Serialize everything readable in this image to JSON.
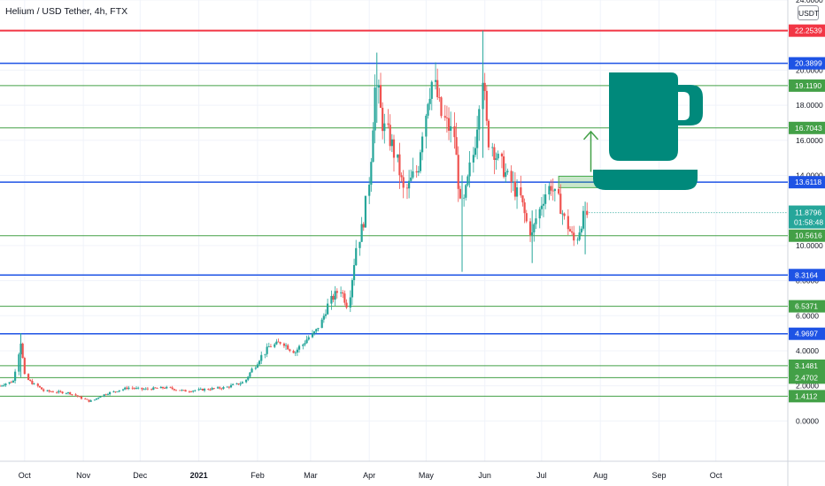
{
  "header": {
    "title": "Helium / USD Tether, 4h, FTX",
    "currency": "USDT"
  },
  "chart_data": {
    "type": "candlestick",
    "symbol": "Helium / USD Tether",
    "interval": "4h",
    "exchange": "FTX",
    "ylim": [
      -2.3,
      24.0
    ],
    "y_ticks": [
      "0.0000",
      "2.0000",
      "4.0000",
      "6.0000",
      "8.0000",
      "10.0000",
      "14.0000",
      "16.0000",
      "18.0000",
      "20.0000",
      "24.0000"
    ],
    "x_ticks": [
      "Oct",
      "Nov",
      "Dec",
      "2021",
      "Feb",
      "Mar",
      "Apr",
      "May",
      "Jun",
      "Jul",
      "Aug",
      "Sep",
      "Oct"
    ],
    "horizontal_levels": [
      {
        "value": 22.2539,
        "label": "22.2539",
        "color": "#f23645"
      },
      {
        "value": 20.3899,
        "label": "20.3899",
        "color": "#1e53e5"
      },
      {
        "value": 19.119,
        "label": "19.1190",
        "color": "#43a047"
      },
      {
        "value": 16.7043,
        "label": "16.7043",
        "color": "#43a047"
      },
      {
        "value": 13.6118,
        "label": "13.6118",
        "color": "#1e53e5"
      },
      {
        "value": 10.5616,
        "label": "10.5616",
        "color": "#43a047"
      },
      {
        "value": 8.3164,
        "label": "8.3164",
        "color": "#1e53e5"
      },
      {
        "value": 6.5371,
        "label": "6.5371",
        "color": "#43a047"
      },
      {
        "value": 4.9697,
        "label": "4.9697",
        "color": "#1e53e5"
      },
      {
        "value": 3.1481,
        "label": "3.1481",
        "color": "#43a047"
      },
      {
        "value": 2.4702,
        "label": "2.4702",
        "color": "#43a047"
      },
      {
        "value": 1.4112,
        "label": "1.4112",
        "color": "#43a047"
      }
    ],
    "last_price": {
      "value": 11.8796,
      "label": "11.8796",
      "countdown": "01:58:48",
      "color": "#26a69a"
    },
    "target_zone": {
      "date_from": "2021-07-10",
      "date_to": "2021-08-31",
      "low": 13.3,
      "high": 13.95
    },
    "target_arrow": {
      "date": "2021-07-27",
      "from": 14.2,
      "to": 16.5
    },
    "x_domain": [
      "2020-09-18",
      "2021-11-08"
    ],
    "price_path": [
      [
        "2020-09-18",
        2.0
      ],
      [
        "2020-09-26",
        2.3
      ],
      [
        "2020-09-29",
        4.7
      ],
      [
        "2020-10-02",
        2.4
      ],
      [
        "2020-10-12",
        1.7
      ],
      [
        "2020-10-25",
        1.6
      ],
      [
        "2020-11-05",
        1.1
      ],
      [
        "2020-11-12",
        1.5
      ],
      [
        "2020-11-25",
        1.9
      ],
      [
        "2020-12-03",
        1.8
      ],
      [
        "2020-12-15",
        1.9
      ],
      [
        "2020-12-25",
        1.7
      ],
      [
        "2021-01-05",
        1.8
      ],
      [
        "2021-01-15",
        1.9
      ],
      [
        "2021-01-25",
        2.2
      ],
      [
        "2021-02-01",
        3.3
      ],
      [
        "2021-02-07",
        4.2
      ],
      [
        "2021-02-14",
        4.5
      ],
      [
        "2021-02-21",
        3.9
      ],
      [
        "2021-02-27",
        4.6
      ],
      [
        "2021-03-05",
        5.2
      ],
      [
        "2021-03-12",
        6.9
      ],
      [
        "2021-03-17",
        7.5
      ],
      [
        "2021-03-21",
        6.6
      ],
      [
        "2021-03-26",
        10.1
      ],
      [
        "2021-03-30",
        11.6
      ],
      [
        "2021-04-02",
        14.8
      ],
      [
        "2021-04-05",
        19.3
      ],
      [
        "2021-04-08",
        17.1
      ],
      [
        "2021-04-14",
        15.6
      ],
      [
        "2021-04-20",
        13.0
      ],
      [
        "2021-04-27",
        14.4
      ],
      [
        "2021-05-02",
        18.4
      ],
      [
        "2021-05-05",
        19.4
      ],
      [
        "2021-05-10",
        17.3
      ],
      [
        "2021-05-16",
        16.3
      ],
      [
        "2021-05-20",
        12.0
      ],
      [
        "2021-05-24",
        13.9
      ],
      [
        "2021-05-28",
        16.5
      ],
      [
        "2021-05-31",
        19.8
      ],
      [
        "2021-06-03",
        16.2
      ],
      [
        "2021-06-08",
        15.0
      ],
      [
        "2021-06-14",
        13.8
      ],
      [
        "2021-06-20",
        12.7
      ],
      [
        "2021-06-26",
        10.5
      ],
      [
        "2021-07-01",
        12.4
      ],
      [
        "2021-07-06",
        13.5
      ],
      [
        "2021-07-11",
        12.3
      ],
      [
        "2021-07-15",
        11.1
      ],
      [
        "2021-07-19",
        10.2
      ],
      [
        "2021-07-23",
        11.5
      ],
      [
        "2021-07-26",
        11.9
      ]
    ]
  },
  "icons": {
    "cup": "coffee-cup-icon",
    "cup_color": "#00897b"
  },
  "colors": {
    "up": "#26a69a",
    "down": "#ef5350",
    "grid": "#f0f3fa",
    "axis_text": "#131722"
  }
}
